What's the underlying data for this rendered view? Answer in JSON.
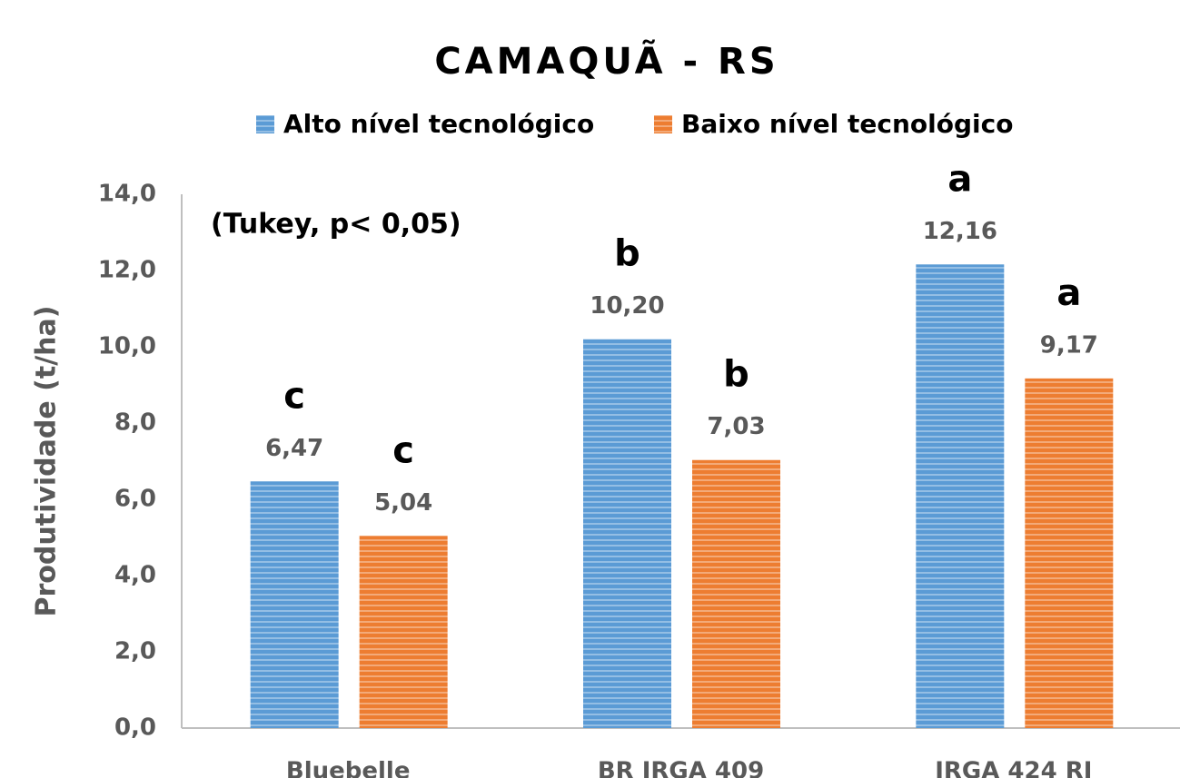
{
  "chart_data": {
    "type": "bar",
    "title": "CAMAQUÃ - RS",
    "annotation": "(Tukey, p< 0,05)",
    "y_label": "Produtividade (t/ha)",
    "categories": [
      "Bluebelle",
      "BR IRGA 409",
      "IRGA 424 RI"
    ],
    "series": [
      {
        "name": "Alto nível tecnológico",
        "color": "#5b9bd5",
        "values": [
          6.47,
          10.2,
          12.16
        ],
        "value_labels": [
          "6,47",
          "10,20",
          "12,16"
        ],
        "significance_letters": [
          "c",
          "b",
          "a"
        ]
      },
      {
        "name": "Baixo nível tecnológico",
        "color": "#ed7d31",
        "values": [
          5.04,
          7.03,
          9.17
        ],
        "value_labels": [
          "5,04",
          "7,03",
          "9,17"
        ],
        "significance_letters": [
          "c",
          "b",
          "a"
        ]
      }
    ],
    "ylim": [
      0,
      14
    ],
    "yticks": [
      {
        "value": 0,
        "label": "0,0"
      },
      {
        "value": 2,
        "label": "2,0"
      },
      {
        "value": 4,
        "label": "4,0"
      },
      {
        "value": 6,
        "label": "6,0"
      },
      {
        "value": 8,
        "label": "8,0"
      },
      {
        "value": 10,
        "label": "10,0"
      },
      {
        "value": 12,
        "label": "12,0"
      },
      {
        "value": 14,
        "label": "14,0"
      }
    ],
    "legend": "top",
    "grid": false
  }
}
